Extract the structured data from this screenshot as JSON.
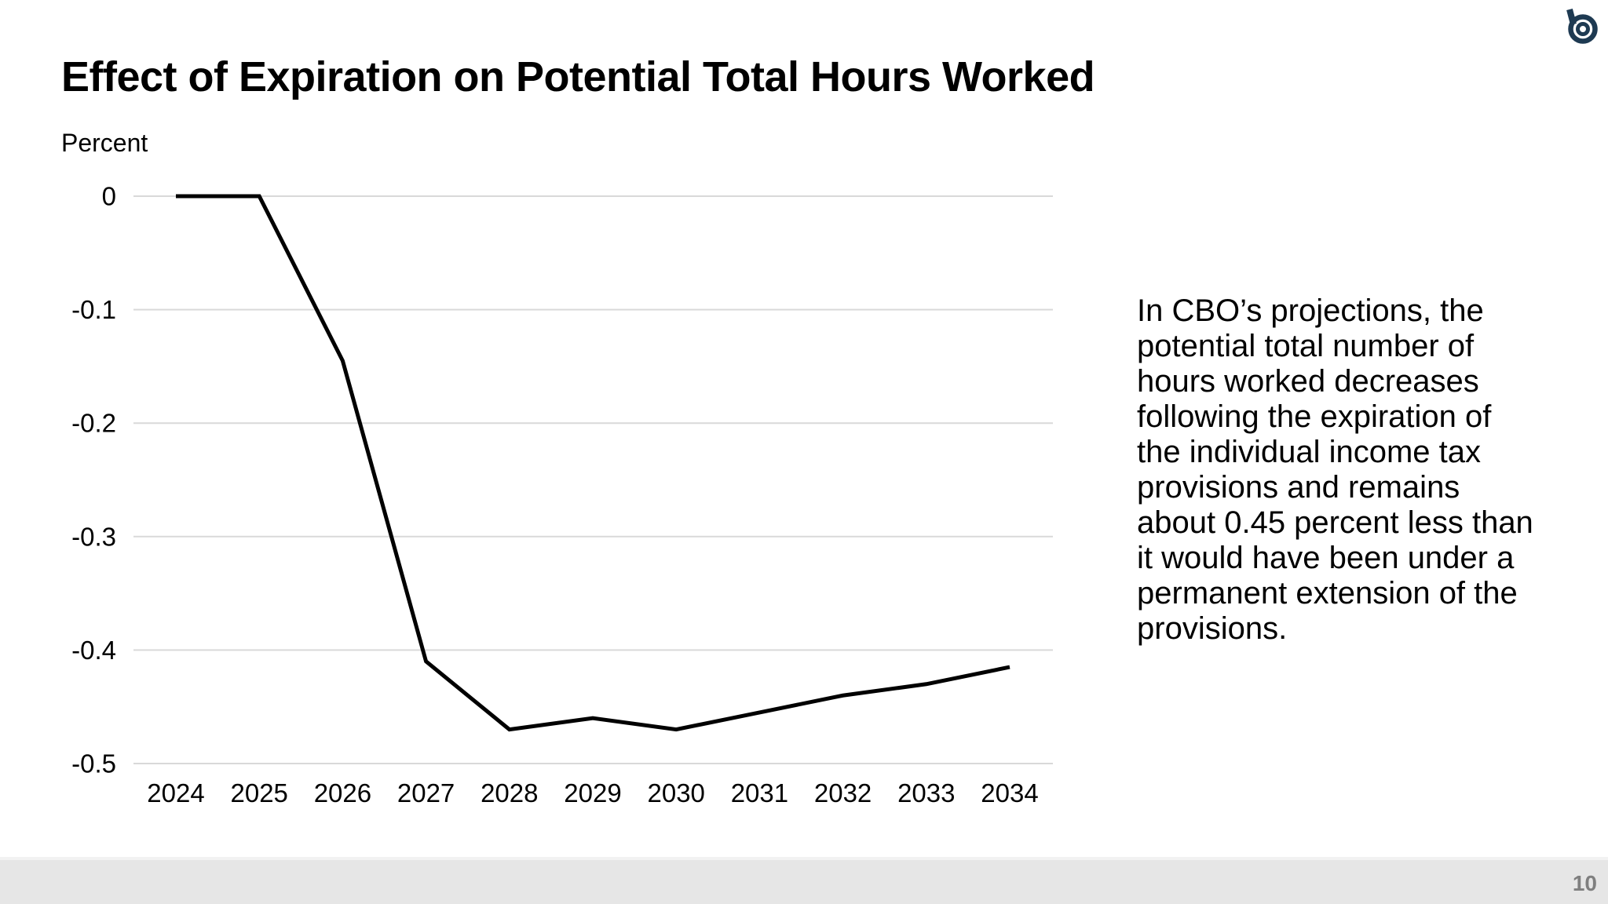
{
  "slide": {
    "title": "Effect of Expiration on Potential Total Hours Worked",
    "page_number": "10",
    "logo_color": "#1e3a52"
  },
  "chart_data": {
    "type": "line",
    "title": "Effect of Expiration on Potential Total Hours Worked",
    "unit_label": "Percent",
    "xlabel": "",
    "ylabel": "Percent",
    "categories": [
      "2024",
      "2025",
      "2026",
      "2027",
      "2028",
      "2029",
      "2030",
      "2031",
      "2032",
      "2033",
      "2034"
    ],
    "values": [
      0,
      0,
      -0.145,
      -0.41,
      -0.47,
      -0.46,
      -0.47,
      -0.455,
      -0.44,
      -0.43,
      -0.415
    ],
    "ytick_labels": [
      "0",
      "-0.1",
      "-0.2",
      "-0.3",
      "-0.4",
      "-0.5"
    ],
    "ylim": [
      -0.5,
      0
    ],
    "grid": true,
    "legend_position": "none",
    "line_color": "#000000",
    "gridline_color": "#d9d9d9",
    "tick_text_color": "#000000"
  },
  "annotation": {
    "lines": [
      "In CBO’s projections, the",
      "potential total number of",
      "hours worked decreases",
      "following the expiration of",
      "the individual income tax",
      "provisions and remains",
      "about 0.45 percent less than",
      "it would have been under a",
      "permanent extension of the",
      "provisions."
    ]
  }
}
